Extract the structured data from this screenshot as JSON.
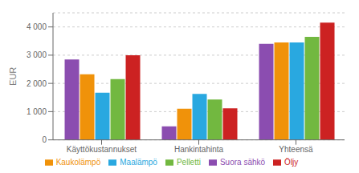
{
  "chart_data": {
    "type": "bar",
    "categories": [
      "Käyttökustannukset",
      "Hankintahinta",
      "Yhteensä"
    ],
    "series": [
      {
        "name": "Suora sähkö",
        "color": "#8B4DB0",
        "values": [
          2850,
          480,
          3400
        ]
      },
      {
        "name": "Kaukolämpö",
        "color": "#F0920A",
        "values": [
          2320,
          1100,
          3450
        ]
      },
      {
        "name": "Maalämpö",
        "color": "#29A8E0",
        "values": [
          1670,
          1630,
          3450
        ]
      },
      {
        "name": "Pelletti",
        "color": "#72B840",
        "values": [
          2150,
          1430,
          3650
        ]
      },
      {
        "name": "Öljy",
        "color": "#CC2222",
        "values": [
          3000,
          1120,
          4150
        ]
      }
    ],
    "ylabel": "EUR",
    "ylim": [
      0,
      4500
    ],
    "yticks": [
      0,
      {
        "value": 1000,
        "label": "1 000"
      },
      {
        "value": 2000,
        "label": "2 000"
      },
      {
        "value": 3000,
        "label": "3 000"
      },
      {
        "value": 4000,
        "label": "4 000"
      }
    ],
    "grid": true,
    "legend": "bottom"
  }
}
